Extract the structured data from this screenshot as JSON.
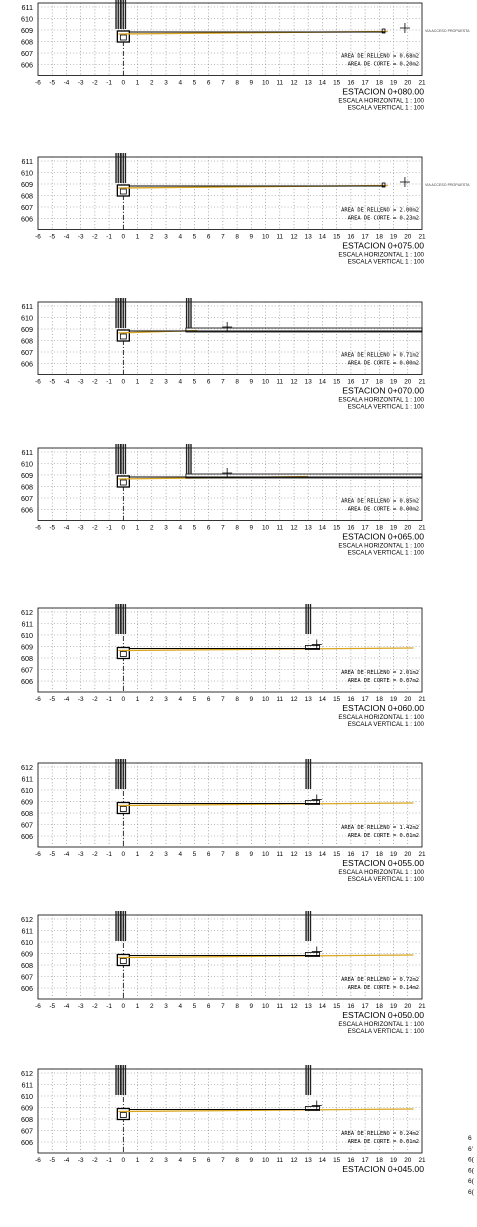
{
  "sheet": {
    "x_ticks": [
      "-6",
      "-5",
      "-4",
      "-3",
      "-2",
      "-1",
      "0",
      "1",
      "2",
      "3",
      "4",
      "5",
      "6",
      "7",
      "8",
      "9",
      "10",
      "11",
      "12",
      "13",
      "14",
      "15",
      "16",
      "17",
      "18",
      "19",
      "20",
      "21"
    ],
    "cut_off_right_labels": [
      "6",
      "6'",
      "6(",
      "6(",
      "6(",
      "6("
    ]
  },
  "sections": [
    {
      "station": "ESTACION 0+080.00",
      "scale_h": "ESCALA HORIZONTAL 1 : 100",
      "scale_v": "ESCALA VERTICAL 1 : 100",
      "fill_area": "AREA DE RELLENO = 0.68m2",
      "cut_area": "AREA DE CORTE = 0.20m2",
      "y_ticks": [
        "611",
        "610",
        "609",
        "608",
        "607",
        "606"
      ],
      "street_label": "VIA ACCESO PROPUESTA",
      "colors": {
        "terrain": "#d9a520",
        "road": "#000000"
      }
    },
    {
      "station": "ESTACION 0+075.00",
      "scale_h": "ESCALA HORIZONTAL 1 : 100",
      "scale_v": "ESCALA VERTICAL 1 : 100",
      "fill_area": "AREA DE RELLENO = 2.00m2",
      "cut_area": "AREA DE CORTE = 0.23m2",
      "y_ticks": [
        "611",
        "610",
        "609",
        "608",
        "607",
        "606"
      ],
      "street_label": "VIA ACCESO PROPUESTA",
      "colors": {
        "terrain": "#d9a520",
        "road": "#000000"
      }
    },
    {
      "station": "ESTACION 0+070.00",
      "scale_h": "ESCALA HORIZONTAL 1 : 100",
      "scale_v": "ESCALA VERTICAL 1 : 100",
      "fill_area": "AREA DE RELLENO = 0.71m2",
      "cut_area": "AREA DE CORTE = 0.00m2",
      "y_ticks": [
        "611",
        "610",
        "609",
        "608",
        "607",
        "606"
      ],
      "street_label": "",
      "colors": {
        "terrain": "#d9a520",
        "road": "#000000"
      }
    },
    {
      "station": "ESTACION 0+065.00",
      "scale_h": "ESCALA HORIZONTAL 1 : 100",
      "scale_v": "ESCALA VERTICAL 1 : 100",
      "fill_area": "AREA DE RELLENO = 0.85m2",
      "cut_area": "AREA DE CORTE = 0.00m2",
      "y_ticks": [
        "611",
        "610",
        "609",
        "608",
        "607",
        "606"
      ],
      "street_label": "",
      "colors": {
        "terrain": "#d9a520",
        "road": "#000000"
      }
    },
    {
      "station": "ESTACION 0+060.00",
      "scale_h": "ESCALA HORIZONTAL 1 : 100",
      "scale_v": "ESCALA VERTICAL 1 : 100",
      "fill_area": "AREA DE RELLENO = 2.01m2",
      "cut_area": "AREA DE CORTE = 0.07m2",
      "y_ticks": [
        "612",
        "611",
        "610",
        "609",
        "608",
        "607",
        "606"
      ],
      "street_label": "",
      "colors": {
        "terrain": "#d9a520",
        "road": "#000000"
      }
    },
    {
      "station": "ESTACION 0+055.00",
      "scale_h": "ESCALA HORIZONTAL 1 : 100",
      "scale_v": "ESCALA VERTICAL 1 : 100",
      "fill_area": "AREA DE RELLENO = 1.42m2",
      "cut_area": "AREA DE CORTE = 0.01m2",
      "y_ticks": [
        "612",
        "611",
        "610",
        "609",
        "608",
        "607",
        "606"
      ],
      "street_label": "",
      "colors": {
        "terrain": "#d9a520",
        "road": "#000000"
      }
    },
    {
      "station": "ESTACION 0+050.00",
      "scale_h": "ESCALA HORIZONTAL 1 : 100",
      "scale_v": "ESCALA VERTICAL 1 : 100",
      "fill_area": "AREA DE RELLENO = 0.72m2",
      "cut_area": "AREA DE CORTE = 0.14m2",
      "y_ticks": [
        "612",
        "611",
        "610",
        "609",
        "608",
        "607",
        "606"
      ],
      "street_label": "",
      "colors": {
        "terrain": "#d9a520",
        "road": "#000000"
      }
    },
    {
      "station": "ESTACION 0+045.00",
      "scale_h": "",
      "scale_v": "",
      "fill_area": "AREA DE RELLENO = 0.24m2",
      "cut_area": "AREA DE CORTE = 0.01m2",
      "y_ticks": [
        "612",
        "611",
        "610",
        "609",
        "608",
        "607",
        "606"
      ],
      "street_label": "",
      "colors": {
        "terrain": "#d9a520",
        "road": "#000000"
      }
    }
  ]
}
